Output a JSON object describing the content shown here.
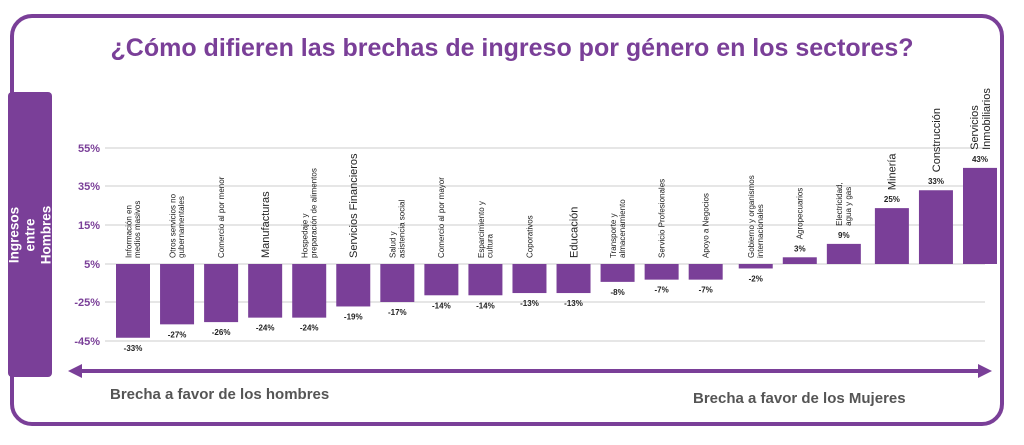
{
  "chart_data": {
    "type": "bar",
    "title": "¿Cómo difieren las brechas de ingreso por género en los sectores?",
    "ylabel": "Brecha de Ingresos entre Hombres y Mujeres",
    "yticks": [
      "55%",
      "35%",
      "15%",
      "5%",
      "-25%",
      "-45%"
    ],
    "categories": [
      "Información en medios masivos",
      "Otros servicios no gubernamentales",
      "Comercio al por menor",
      "Manufacturas",
      "Hospedaje y preparación de alimentos",
      "Servicios Financieros",
      "Salud y asistencia social",
      "Comercio al por mayor",
      "Esparcimiento y cultura",
      "Coporativos",
      "Educación",
      "Transporte y almacenamiento",
      "Servicio Profesionales",
      "Apoyo a Negocios",
      "Gobierno y organismos internacionales",
      "Agropecuarios",
      "Electricidad, agua y gas",
      "Minería",
      "Construcción",
      "Servicios Inmobiliarios"
    ],
    "values": [
      -33,
      -27,
      -26,
      -24,
      -24,
      -19,
      -17,
      -14,
      -14,
      -13,
      -13,
      -8,
      -7,
      -7,
      -2,
      3,
      9,
      25,
      33,
      43
    ],
    "data_labels": [
      "-33%",
      "-27%",
      "-26%",
      "-24%",
      "-24%",
      "-19%",
      "-17%",
      "-14%",
      "-14%",
      "-13%",
      "-13%",
      "-8%",
      "-7%",
      "-7%",
      "-2%",
      "3%",
      "9%",
      "25%",
      "33%",
      "43%"
    ],
    "bar_color": "#7a3f98",
    "grid": true
  },
  "footer": {
    "left": "Brecha a favor de los hombres",
    "right": "Brecha a favor de los Mujeres"
  },
  "colors": {
    "accent": "#7a3f98",
    "tick": "#7a3f98",
    "footer_text": "#555555"
  }
}
